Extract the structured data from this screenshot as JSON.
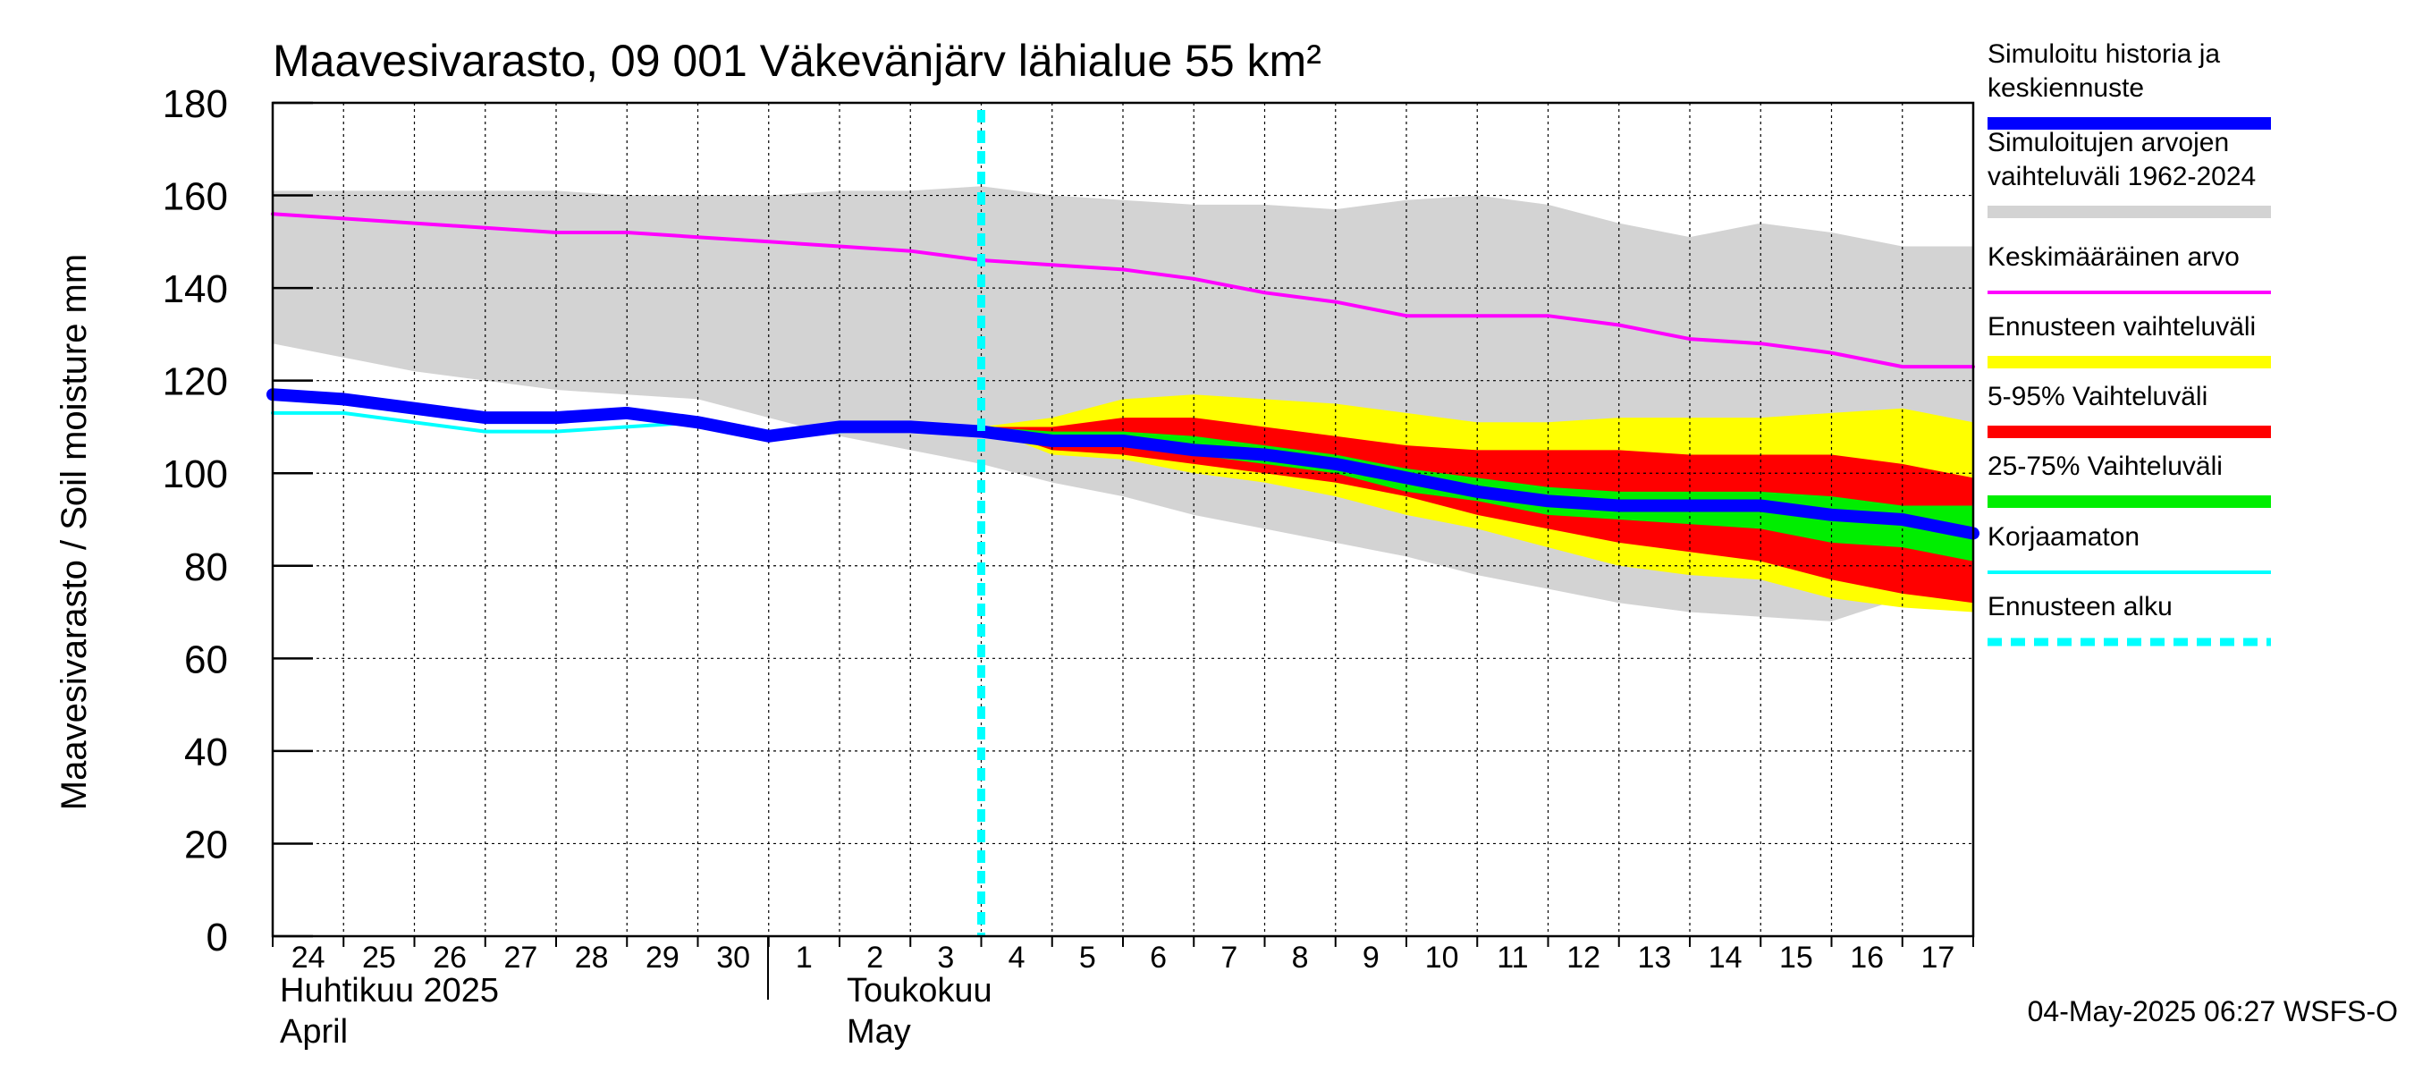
{
  "chart_data": {
    "type": "area",
    "title": "Maavesivarasto, 09 001 Väkevänjärv lähialue 55 km²",
    "ylabel": "Maavesivarasto / Soil moisture   mm",
    "ylim": [
      0,
      180
    ],
    "yticks": [
      0,
      20,
      40,
      60,
      80,
      100,
      120,
      140,
      160,
      180
    ],
    "grid": true,
    "xlim": [
      0,
      24
    ],
    "day_labels": [
      "24",
      "25",
      "26",
      "27",
      "28",
      "29",
      "30",
      "1",
      "2",
      "3",
      "4",
      "5",
      "6",
      "7",
      "8",
      "9",
      "10",
      "11",
      "12",
      "13",
      "14",
      "15",
      "16",
      "17"
    ],
    "month_labels": [
      {
        "line1": "Huhtikuu  2025",
        "line2": "April",
        "at_day": 0
      },
      {
        "line1": "Toukokuu",
        "line2": "May",
        "at_day": 8
      }
    ],
    "forecast_start_x": 10,
    "x": [
      0,
      1,
      2,
      3,
      4,
      5,
      6,
      7,
      8,
      9,
      10,
      11,
      12,
      13,
      14,
      15,
      16,
      17,
      18,
      19,
      20,
      21,
      22,
      23,
      24
    ],
    "series": [
      {
        "name": "Simuloitujen arvojen vaihteluväli 1962-2024",
        "kind": "band",
        "color": "#d3d3d3",
        "upper": [
          161,
          161,
          161,
          161,
          161,
          160,
          160,
          160,
          161,
          161,
          162,
          160,
          159,
          158,
          158,
          157,
          159,
          160,
          158,
          154,
          151,
          154,
          152,
          149,
          149
        ],
        "lower": [
          128,
          125,
          122,
          120,
          118,
          117,
          116,
          112,
          108,
          105,
          102,
          98,
          95,
          91,
          88,
          85,
          82,
          78,
          75,
          72,
          70,
          69,
          68,
          73,
          72
        ]
      },
      {
        "name": "Ennusteen vaihteluväli",
        "kind": "band",
        "color": "#ffff00",
        "upper": [
          null,
          null,
          null,
          null,
          null,
          null,
          null,
          null,
          null,
          null,
          110,
          112,
          116,
          117,
          116,
          115,
          113,
          111,
          111,
          112,
          112,
          112,
          113,
          114,
          111
        ],
        "lower": [
          null,
          null,
          null,
          null,
          null,
          null,
          null,
          null,
          null,
          null,
          110,
          104,
          103,
          100,
          98,
          95,
          91,
          88,
          84,
          80,
          78,
          77,
          73,
          71,
          70
        ]
      },
      {
        "name": "5-95% Vaihteluväli",
        "kind": "band",
        "color": "#ff0000",
        "upper": [
          null,
          null,
          null,
          null,
          null,
          null,
          null,
          null,
          null,
          null,
          110,
          110,
          112,
          112,
          110,
          108,
          106,
          105,
          105,
          105,
          104,
          104,
          104,
          102,
          99
        ],
        "lower": [
          null,
          null,
          null,
          null,
          null,
          null,
          null,
          null,
          null,
          null,
          110,
          105,
          104,
          102,
          100,
          98,
          95,
          91,
          88,
          85,
          83,
          81,
          77,
          74,
          72
        ]
      },
      {
        "name": "25-75% Vaihteluväli",
        "kind": "band",
        "color": "#00ee00",
        "upper": [
          null,
          null,
          null,
          null,
          null,
          null,
          null,
          null,
          null,
          null,
          110,
          109,
          109,
          108,
          106,
          104,
          101,
          99,
          97,
          96,
          96,
          96,
          95,
          93,
          93
        ],
        "lower": [
          null,
          null,
          null,
          null,
          null,
          null,
          null,
          null,
          null,
          null,
          110,
          107,
          106,
          104,
          102,
          100,
          96,
          94,
          91,
          90,
          89,
          88,
          85,
          84,
          81
        ]
      },
      {
        "name": "Keskimääräinen arvo",
        "kind": "line",
        "color": "#ff00ff",
        "width": 4,
        "values": [
          156,
          155,
          154,
          153,
          152,
          152,
          151,
          150,
          149,
          148,
          146,
          145,
          144,
          142,
          139,
          137,
          134,
          134,
          134,
          132,
          129,
          128,
          126,
          123,
          123
        ]
      },
      {
        "name": "Korjaamaton",
        "kind": "line",
        "color": "#00ffff",
        "width": 4,
        "values": [
          113,
          113,
          111,
          109,
          109,
          110,
          111,
          108,
          109,
          110,
          109,
          null,
          null,
          null,
          null,
          null,
          null,
          null,
          null,
          null,
          null,
          null,
          null,
          null,
          null
        ]
      },
      {
        "name": "Simuloitu historia ja keskiennuste",
        "kind": "line",
        "color": "#0000ff",
        "width": 14,
        "values": [
          117,
          116,
          114,
          112,
          112,
          113,
          111,
          108,
          110,
          110,
          109,
          107,
          107,
          105,
          104,
          102,
          99,
          96,
          94,
          93,
          93,
          93,
          91,
          90,
          87
        ]
      }
    ],
    "legend": [
      {
        "label": "Simuloitu historia ja\nkeskiennuste",
        "color": "#0000ff",
        "style": "thick"
      },
      {
        "label": "Simuloitujen arvojen\nvaihteluväli 1962-2024",
        "color": "#d3d3d3",
        "style": "thick"
      },
      {
        "label": "Keskimääräinen arvo",
        "color": "#ff00ff",
        "style": "thin"
      },
      {
        "label": "Ennusteen vaihteluväli",
        "color": "#ffff00",
        "style": "thick"
      },
      {
        "label": "5-95% Vaihteluväli",
        "color": "#ff0000",
        "style": "thick"
      },
      {
        "label": "25-75% Vaihteluväli",
        "color": "#00ee00",
        "style": "thick"
      },
      {
        "label": "Korjaamaton",
        "color": "#00ffff",
        "style": "thin"
      },
      {
        "label": "Ennusteen alku",
        "color": "#00ffff",
        "style": "dashed"
      }
    ],
    "timestamp": "04-May-2025 06:27 WSFS-O"
  }
}
